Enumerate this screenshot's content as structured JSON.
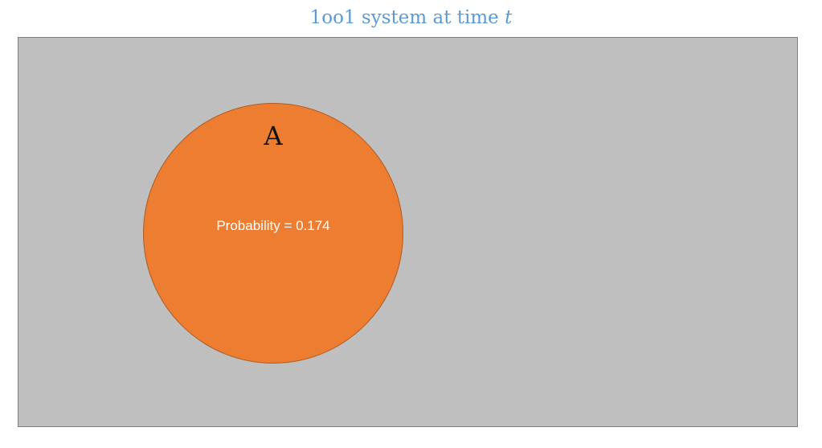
{
  "title": {
    "prefix": "1oo1 system at time ",
    "variable": "t",
    "color": "#5b9bd5"
  },
  "universe": {
    "fill_color": "#bfbfbf"
  },
  "event": {
    "name": "A",
    "probability_text": "Probability = 0.174",
    "probability": 0.174,
    "fill_color": "#ed7d31"
  }
}
